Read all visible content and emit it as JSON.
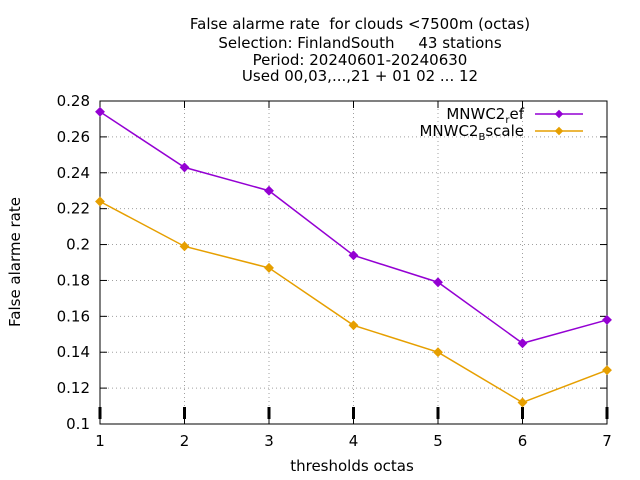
{
  "chart_data": {
    "type": "line",
    "title_lines": [
      "False alarme rate  for clouds <7500m (octas)",
      "Selection: FinlandSouth     43 stations",
      "Period: 20240601-20240630",
      "Used 00,03,...,21 + 01 02 ... 12"
    ],
    "xlabel": "thresholds octas",
    "ylabel": "False alarme rate",
    "x": [
      1,
      2,
      3,
      4,
      5,
      6,
      7
    ],
    "xlim": [
      1,
      7
    ],
    "ylim": [
      0.1,
      0.28
    ],
    "x_ticks": [
      "1",
      "2",
      "3",
      "4",
      "5",
      "6",
      "7"
    ],
    "y_ticks": [
      "0.1",
      "0.12",
      "0.14",
      "0.16",
      "0.18",
      "0.2",
      "0.22",
      "0.24",
      "0.26",
      "0.28"
    ],
    "grid": true,
    "legend_position": "top-right",
    "series": [
      {
        "name_main": "MNWC2",
        "name_sub": "r",
        "name_rest": "ef",
        "color": "#9400d3",
        "values": [
          0.274,
          0.243,
          0.23,
          0.194,
          0.179,
          0.145,
          0.158
        ]
      },
      {
        "name_main": "MNWC2",
        "name_sub": "B",
        "name_rest": "scale",
        "color": "#e69f00",
        "values": [
          0.224,
          0.199,
          0.187,
          0.155,
          0.14,
          0.112,
          0.13
        ]
      }
    ]
  }
}
